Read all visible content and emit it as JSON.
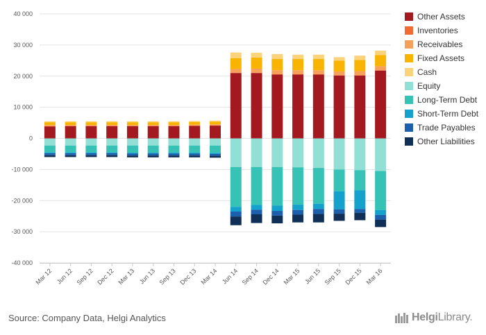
{
  "chart_data": {
    "type": "bar",
    "stacked": true,
    "categories": [
      "Mar 12",
      "Jun 12",
      "Sep 12",
      "Dec 12",
      "Mar 13",
      "Jun 13",
      "Sep 13",
      "Dec 13",
      "Mar 14",
      "Jun 14",
      "Sep 14",
      "Dec 14",
      "Mar 15",
      "Jun 15",
      "Sep 15",
      "Dec 15",
      "Mar 16"
    ],
    "y_ticks": [
      "40 000",
      "30 000",
      "20 000",
      "10 000",
      "0",
      "-10 000",
      "-20 000",
      "-30 000",
      "-40 000"
    ],
    "ylim": [
      -40000,
      40000
    ],
    "grid": true,
    "legend_position": "right",
    "series": [
      {
        "name": "Other Assets",
        "color": "#a3191f",
        "values": [
          3800,
          3900,
          3900,
          3900,
          3900,
          3900,
          3900,
          4000,
          4100,
          21000,
          21000,
          20500,
          20500,
          20500,
          20200,
          20200,
          21800
        ]
      },
      {
        "name": "Inventories",
        "color": "#f26b32",
        "values": [
          100,
          100,
          100,
          100,
          100,
          100,
          100,
          100,
          100,
          100,
          100,
          100,
          100,
          100,
          100,
          100,
          100
        ]
      },
      {
        "name": "Receivables",
        "color": "#f7a05a",
        "values": [
          400,
          300,
          300,
          300,
          300,
          300,
          300,
          300,
          300,
          1200,
          1300,
          1300,
          1300,
          1300,
          1200,
          1300,
          1300
        ]
      },
      {
        "name": "Fixed Assets",
        "color": "#f8b400",
        "values": [
          900,
          900,
          900,
          900,
          900,
          900,
          900,
          900,
          900,
          3500,
          3600,
          3600,
          3600,
          3600,
          3500,
          3600,
          3600
        ]
      },
      {
        "name": "Cash",
        "color": "#fbd37c",
        "values": [
          300,
          300,
          300,
          300,
          300,
          300,
          300,
          300,
          300,
          1800,
          1500,
          1600,
          1400,
          1400,
          1100,
          1400,
          1400
        ]
      },
      {
        "name": "Equity",
        "color": "#92dfd6",
        "values": [
          -2300,
          -2300,
          -2300,
          -2300,
          -2300,
          -2300,
          -2300,
          -2300,
          -2300,
          -9200,
          -9200,
          -9200,
          -9300,
          -9500,
          -10000,
          -10200,
          -10500
        ]
      },
      {
        "name": "Long-Term Debt",
        "color": "#36c2b4",
        "values": [
          -2200,
          -2200,
          -2200,
          -2200,
          -2300,
          -2300,
          -2300,
          -2300,
          -2400,
          -12800,
          -12200,
          -12400,
          -12000,
          -11500,
          -7000,
          -6500,
          -12500
        ]
      },
      {
        "name": "Short-Term Debt",
        "color": "#14a1cc",
        "values": [
          -300,
          -300,
          -300,
          -300,
          -300,
          -300,
          -300,
          -300,
          -300,
          -1500,
          -1500,
          -1700,
          -1700,
          -1700,
          -5800,
          -6000,
          -1600
        ]
      },
      {
        "name": "Trade Payables",
        "color": "#1c5fad",
        "values": [
          -600,
          -600,
          -600,
          -600,
          -600,
          -600,
          -600,
          -600,
          -600,
          -1600,
          -1500,
          -1500,
          -1500,
          -1600,
          -1400,
          -1200,
          -1500
        ]
      },
      {
        "name": "Other Liabilities",
        "color": "#0f2f56",
        "values": [
          -600,
          -600,
          -600,
          -600,
          -600,
          -600,
          -600,
          -600,
          -600,
          -2800,
          -2800,
          -2500,
          -2500,
          -2700,
          -2300,
          -2400,
          -2400
        ]
      }
    ]
  },
  "source_text": "Source: Company Data, Helgi Analytics",
  "logo": {
    "bold": "Helgi",
    "light": "Library."
  }
}
